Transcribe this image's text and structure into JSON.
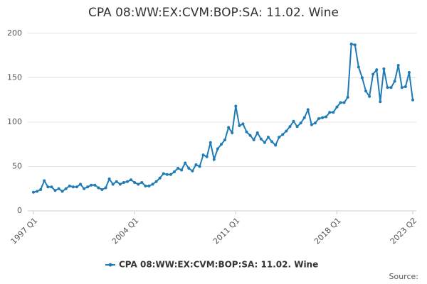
{
  "chart_data": {
    "type": "line",
    "title": "CPA 08:WW:EX:CVM:BOP:SA: 11.02. Wine",
    "source_label": "Source:",
    "categories": [
      "1997 Q1",
      null,
      null,
      null,
      null,
      null,
      null,
      null,
      null,
      null,
      null,
      null,
      null,
      null,
      null,
      null,
      null,
      null,
      null,
      null,
      null,
      null,
      null,
      null,
      null,
      null,
      null,
      null,
      "2004 Q1",
      null,
      null,
      null,
      null,
      null,
      null,
      null,
      null,
      null,
      null,
      null,
      null,
      null,
      null,
      null,
      null,
      null,
      null,
      null,
      null,
      null,
      null,
      null,
      null,
      null,
      null,
      null,
      "2011 Q1",
      null,
      null,
      null,
      null,
      null,
      null,
      null,
      null,
      null,
      null,
      null,
      null,
      null,
      null,
      null,
      null,
      null,
      null,
      null,
      null,
      null,
      null,
      null,
      null,
      null,
      null,
      null,
      "2018 Q1",
      null,
      null,
      null,
      null,
      null,
      null,
      null,
      null,
      null,
      null,
      null,
      null,
      null,
      null,
      null,
      null,
      null,
      null,
      null,
      null,
      "2023 Q2"
    ],
    "series": [
      {
        "name": "CPA 08:WW:EX:CVM:BOP:SA: 11.02. Wine",
        "color": "#1f7bb6",
        "values": [
          21,
          22,
          24,
          34,
          27,
          27,
          23,
          25,
          22,
          25,
          28,
          27,
          27,
          30,
          25,
          27,
          29,
          29,
          26,
          24,
          26,
          36,
          30,
          33,
          30,
          32,
          33,
          35,
          32,
          30,
          32,
          28,
          28,
          30,
          33,
          37,
          42,
          41,
          41,
          44,
          48,
          46,
          54,
          48,
          45,
          52,
          50,
          63,
          61,
          77,
          58,
          70,
          75,
          80,
          94,
          88,
          118,
          96,
          98,
          89,
          85,
          80,
          88,
          81,
          77,
          83,
          78,
          74,
          83,
          86,
          90,
          95,
          101,
          95,
          99,
          105,
          114,
          97,
          99,
          104,
          105,
          106,
          111,
          111,
          117,
          122,
          122,
          128,
          188,
          187,
          162,
          150,
          135,
          129,
          154,
          159,
          123,
          160,
          139,
          139,
          146,
          164,
          139,
          140,
          156,
          125
        ]
      }
    ],
    "ylim": [
      0,
      200
    ],
    "yticks": [
      0,
      50,
      100,
      150,
      200
    ],
    "grid": true
  }
}
